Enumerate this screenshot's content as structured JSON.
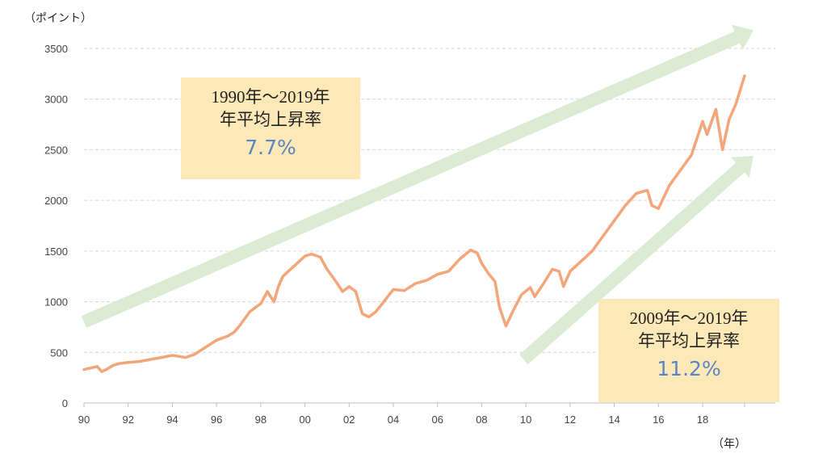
{
  "chart_data": {
    "type": "line",
    "ylabel": "（ポイント）",
    "xlabel": "（年）",
    "ylim": [
      0,
      3500
    ],
    "yticks": [
      0,
      500,
      1000,
      1500,
      2000,
      2500,
      3000,
      3500
    ],
    "xlim": [
      1990,
      2019.9
    ],
    "xticks": [
      {
        "x": 1990,
        "label": "90"
      },
      {
        "x": 1992,
        "label": "92"
      },
      {
        "x": 1994,
        "label": "94"
      },
      {
        "x": 1996,
        "label": "96"
      },
      {
        "x": 1998,
        "label": "98"
      },
      {
        "x": 2000,
        "label": "00"
      },
      {
        "x": 2002,
        "label": "02"
      },
      {
        "x": 2004,
        "label": "04"
      },
      {
        "x": 2006,
        "label": "06"
      },
      {
        "x": 2008,
        "label": "08"
      },
      {
        "x": 2010,
        "label": "10"
      },
      {
        "x": 2012,
        "label": "12"
      },
      {
        "x": 2014,
        "label": "14"
      },
      {
        "x": 2016,
        "label": "16"
      },
      {
        "x": 2018,
        "label": "18"
      }
    ],
    "grid": true,
    "series": [
      {
        "color": "#f2a679",
        "points": [
          [
            1990.0,
            330
          ],
          [
            1990.4,
            350
          ],
          [
            1990.6,
            360
          ],
          [
            1990.8,
            310
          ],
          [
            1991.0,
            330
          ],
          [
            1991.3,
            370
          ],
          [
            1991.6,
            390
          ],
          [
            1992.0,
            400
          ],
          [
            1992.5,
            410
          ],
          [
            1993.0,
            430
          ],
          [
            1993.5,
            450
          ],
          [
            1994.0,
            470
          ],
          [
            1994.3,
            460
          ],
          [
            1994.6,
            450
          ],
          [
            1995.0,
            480
          ],
          [
            1995.5,
            550
          ],
          [
            1996.0,
            620
          ],
          [
            1996.5,
            660
          ],
          [
            1996.8,
            700
          ],
          [
            1997.0,
            750
          ],
          [
            1997.5,
            900
          ],
          [
            1997.8,
            950
          ],
          [
            1998.0,
            980
          ],
          [
            1998.3,
            1100
          ],
          [
            1998.6,
            1000
          ],
          [
            1998.8,
            1150
          ],
          [
            1999.0,
            1250
          ],
          [
            1999.5,
            1350
          ],
          [
            2000.0,
            1450
          ],
          [
            2000.3,
            1470
          ],
          [
            2000.7,
            1440
          ],
          [
            2001.0,
            1320
          ],
          [
            2001.4,
            1200
          ],
          [
            2001.7,
            1100
          ],
          [
            2002.0,
            1150
          ],
          [
            2002.3,
            1100
          ],
          [
            2002.6,
            880
          ],
          [
            2002.9,
            850
          ],
          [
            2003.2,
            900
          ],
          [
            2003.5,
            980
          ],
          [
            2004.0,
            1120
          ],
          [
            2004.5,
            1110
          ],
          [
            2005.0,
            1180
          ],
          [
            2005.5,
            1210
          ],
          [
            2006.0,
            1270
          ],
          [
            2006.5,
            1300
          ],
          [
            2007.0,
            1420
          ],
          [
            2007.5,
            1510
          ],
          [
            2007.8,
            1480
          ],
          [
            2008.0,
            1380
          ],
          [
            2008.3,
            1280
          ],
          [
            2008.6,
            1200
          ],
          [
            2008.8,
            950
          ],
          [
            2009.1,
            760
          ],
          [
            2009.4,
            900
          ],
          [
            2009.8,
            1070
          ],
          [
            2010.2,
            1140
          ],
          [
            2010.4,
            1050
          ],
          [
            2010.8,
            1180
          ],
          [
            2011.2,
            1320
          ],
          [
            2011.5,
            1300
          ],
          [
            2011.7,
            1150
          ],
          [
            2012.0,
            1300
          ],
          [
            2012.5,
            1400
          ],
          [
            2013.0,
            1500
          ],
          [
            2013.5,
            1650
          ],
          [
            2014.0,
            1800
          ],
          [
            2014.5,
            1950
          ],
          [
            2015.0,
            2070
          ],
          [
            2015.5,
            2100
          ],
          [
            2015.7,
            1950
          ],
          [
            2016.0,
            1920
          ],
          [
            2016.5,
            2150
          ],
          [
            2017.0,
            2300
          ],
          [
            2017.5,
            2450
          ],
          [
            2018.0,
            2780
          ],
          [
            2018.2,
            2650
          ],
          [
            2018.6,
            2900
          ],
          [
            2018.9,
            2500
          ],
          [
            2019.2,
            2800
          ],
          [
            2019.5,
            2950
          ],
          [
            2019.9,
            3230
          ]
        ]
      }
    ],
    "trend_arrows": [
      {
        "from": [
          1990,
          800
        ],
        "to": [
          2020.3,
          3680
        ],
        "color": "#dcebd3"
      },
      {
        "from": [
          2009.9,
          430
        ],
        "to": [
          2020.3,
          2440
        ],
        "color": "#dcebd3"
      }
    ],
    "annotations": [
      {
        "line1": "1990年～2019年",
        "line2": "年平均上昇率",
        "rate": "7.7%"
      },
      {
        "line1": "2009年～2019年",
        "line2": "年平均上昇率",
        "rate": "11.2%"
      }
    ]
  }
}
